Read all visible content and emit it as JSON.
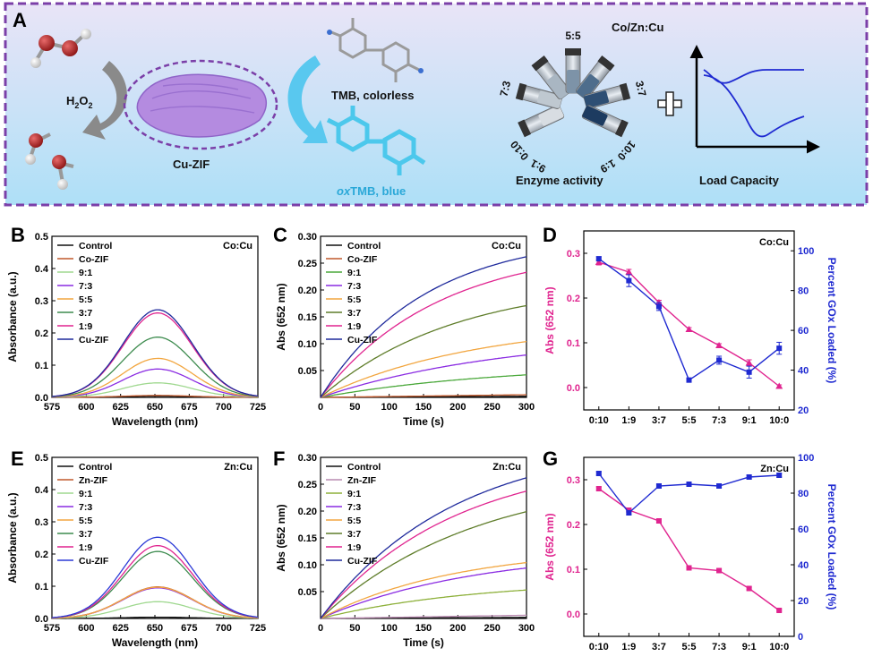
{
  "schematic": {
    "letter": "A",
    "h2o2": "H",
    "h2o2_sub": "2",
    "h2o2_o": "O",
    "h2o2_sub2": "2",
    "cuzif": "Cu-ZIF",
    "tmb": "TMB, colorless",
    "oxtmb_ox": "ox",
    "oxtmb_rest": "TMB, blue",
    "co_zn_cu": "Co/Zn:Cu",
    "vials": [
      "10:0",
      "9:1",
      "7:3",
      "5:5",
      "3:7",
      "1:9",
      "0:10"
    ],
    "enzyme": "Enzyme activity",
    "load": "Load Capacity",
    "colors": {
      "border": "#7b3fa8",
      "bg_top": "#e9e4f7",
      "bg_bottom": "#aee0f7",
      "arrow": "#8a8a8a",
      "arrow_blue": "#59c8ef"
    }
  },
  "chart_data": [
    {
      "id": "B",
      "letter": "B",
      "type": "line",
      "title": "",
      "tag": "Co:Cu",
      "xlabel": "Wavelength (nm)",
      "ylabel": "Absorbance (a.u.)",
      "xlim": [
        575,
        725
      ],
      "ylim": [
        0,
        0.5
      ],
      "xticks": [
        575,
        600,
        625,
        650,
        675,
        700,
        725
      ],
      "yticks": [
        0.0,
        0.1,
        0.2,
        0.3,
        0.4,
        0.5
      ],
      "ytick_labels": [
        "0.0",
        "0.1",
        "0.2",
        "0.3",
        "0.4",
        "0.5"
      ],
      "peak_x": 652,
      "series": [
        {
          "name": "Control",
          "peak": 0.004,
          "color": "#111111"
        },
        {
          "name": "Co-ZIF",
          "peak": 0.006,
          "color": "#c0582b"
        },
        {
          "name": "9:1",
          "peak": 0.045,
          "color": "#9fd88f"
        },
        {
          "name": "7:3",
          "peak": 0.088,
          "color": "#8a2be2"
        },
        {
          "name": "5:5",
          "peak": 0.121,
          "color": "#f2a640"
        },
        {
          "name": "3:7",
          "peak": 0.187,
          "color": "#3d8b4e"
        },
        {
          "name": "1:9",
          "peak": 0.262,
          "color": "#e0248f"
        },
        {
          "name": "Cu-ZIF",
          "peak": 0.272,
          "color": "#1f2a9c"
        }
      ]
    },
    {
      "id": "C",
      "letter": "C",
      "type": "line",
      "title": "",
      "tag": "Co:Cu",
      "xlabel": "Time (s)",
      "ylabel": "Abs (652 nm)",
      "xlim": [
        0,
        300
      ],
      "ylim": [
        0,
        0.3
      ],
      "xticks": [
        0,
        50,
        100,
        150,
        200,
        250,
        300
      ],
      "yticks": [
        0.05,
        0.1,
        0.15,
        0.2,
        0.25,
        0.3
      ],
      "ytick_labels": [
        "0.05",
        "0.10",
        "0.15",
        "0.20",
        "0.25",
        "0.30"
      ],
      "series": [
        {
          "name": "Control",
          "end": 0.002,
          "k": 0.0,
          "color": "#111111"
        },
        {
          "name": "Co-ZIF",
          "end": 0.005,
          "k": 0.0,
          "color": "#c0582b"
        },
        {
          "name": "9:1",
          "end": 0.042,
          "k": 0.5,
          "color": "#4aa83a"
        },
        {
          "name": "7:3",
          "end": 0.079,
          "k": 0.5,
          "color": "#8a2be2"
        },
        {
          "name": "5:5",
          "end": 0.104,
          "k": 0.6,
          "color": "#f2a640"
        },
        {
          "name": "3:7",
          "end": 0.171,
          "k": 0.7,
          "color": "#5f7d2a"
        },
        {
          "name": "1:9",
          "end": 0.233,
          "k": 0.8,
          "color": "#e0248f"
        },
        {
          "name": "Cu-ZIF",
          "end": 0.262,
          "k": 0.9,
          "color": "#1f2a9c"
        }
      ]
    },
    {
      "id": "D",
      "letter": "D",
      "type": "line",
      "title": "",
      "tag": "Co:Cu",
      "categories": [
        "0:10",
        "1:9",
        "3:7",
        "5:5",
        "7:3",
        "9:1",
        "10:0"
      ],
      "ylabel": "Abs (652 nm)",
      "y2label": "Percent GOx Loaded (%)",
      "ylim": [
        -0.05,
        0.35
      ],
      "yticks": [
        0.0,
        0.1,
        0.2,
        0.3
      ],
      "ytick_labels": [
        "0.0",
        "0.1",
        "0.2",
        "0.3"
      ],
      "y2lim": [
        20,
        110
      ],
      "y2ticks": [
        20,
        40,
        60,
        80,
        100
      ],
      "series": [
        {
          "name": "Abs (652 nm)",
          "axis": "left",
          "color": "#e0248f",
          "marker": "triangle",
          "values": [
            0.28,
            0.258,
            0.19,
            0.13,
            0.094,
            0.055,
            0.003
          ],
          "err": [
            0.006,
            0.006,
            0.005,
            0.004,
            0.004,
            0.007,
            0.003
          ]
        },
        {
          "name": "Percent GOx Loaded (%)",
          "axis": "right",
          "color": "#1f2ad1",
          "marker": "square",
          "values": [
            96,
            85,
            72,
            35,
            45,
            39,
            51
          ],
          "err": [
            1,
            3,
            2,
            1,
            2,
            3,
            3
          ]
        }
      ]
    },
    {
      "id": "E",
      "letter": "E",
      "type": "line",
      "title": "",
      "tag": "Zn:Cu",
      "xlabel": "Wavelength (nm)",
      "ylabel": "Absorbance (a.u.)",
      "xlim": [
        575,
        725
      ],
      "ylim": [
        0,
        0.5
      ],
      "xticks": [
        575,
        600,
        625,
        650,
        675,
        700,
        725
      ],
      "yticks": [
        0.0,
        0.1,
        0.2,
        0.3,
        0.4,
        0.5
      ],
      "ytick_labels": [
        "0.0",
        "0.1",
        "0.2",
        "0.3",
        "0.4",
        "0.5"
      ],
      "peak_x": 652,
      "series": [
        {
          "name": "Control",
          "peak": 0.004,
          "color": "#111111"
        },
        {
          "name": "Zn-ZIF",
          "peak": 0.098,
          "color": "#c0582b"
        },
        {
          "name": "9:1",
          "peak": 0.052,
          "color": "#9fd88f"
        },
        {
          "name": "7:3",
          "peak": 0.095,
          "color": "#8a2be2"
        },
        {
          "name": "5:5",
          "peak": 0.097,
          "color": "#f2a640"
        },
        {
          "name": "3:7",
          "peak": 0.208,
          "color": "#3d8b4e"
        },
        {
          "name": "1:9",
          "peak": 0.226,
          "color": "#e0248f"
        },
        {
          "name": "Cu-ZIF",
          "peak": 0.252,
          "color": "#2b3ad6"
        }
      ]
    },
    {
      "id": "F",
      "letter": "F",
      "type": "line",
      "title": "",
      "tag": "Zn:Cu",
      "xlabel": "Time (s)",
      "ylabel": "Abs (652 nm)",
      "xlim": [
        0,
        300
      ],
      "ylim": [
        0,
        0.3
      ],
      "xticks": [
        0,
        50,
        100,
        150,
        200,
        250,
        300
      ],
      "yticks": [
        0.05,
        0.1,
        0.15,
        0.2,
        0.25,
        0.3
      ],
      "ytick_labels": [
        "0.05",
        "0.10",
        "0.15",
        "0.20",
        "0.25",
        "0.30"
      ],
      "series": [
        {
          "name": "Control",
          "end": 0.002,
          "k": 0.0,
          "color": "#111111"
        },
        {
          "name": "Zn-ZIF",
          "end": 0.006,
          "k": 0.0,
          "color": "#b98ab0"
        },
        {
          "name": "9:1",
          "end": 0.053,
          "k": 0.6,
          "color": "#8db03a"
        },
        {
          "name": "7:3",
          "end": 0.094,
          "k": 0.6,
          "color": "#8a2be2"
        },
        {
          "name": "5:5",
          "end": 0.104,
          "k": 0.7,
          "color": "#f2a640"
        },
        {
          "name": "3:7",
          "end": 0.199,
          "k": 0.6,
          "color": "#5f7d2a"
        },
        {
          "name": "1:9",
          "end": 0.237,
          "k": 0.7,
          "color": "#e0248f"
        },
        {
          "name": "Cu-ZIF",
          "end": 0.262,
          "k": 0.7,
          "color": "#1f2a9c"
        }
      ]
    },
    {
      "id": "G",
      "letter": "G",
      "type": "line",
      "title": "",
      "tag": "Zn:Cu",
      "categories": [
        "0:10",
        "1:9",
        "3:7",
        "5:5",
        "7:3",
        "9:1",
        "10:0"
      ],
      "ylabel": "Abs (652 nm)",
      "y2label": "Percent GOx Loaded (%)",
      "ylim": [
        -0.05,
        0.35
      ],
      "yticks": [
        0.0,
        0.1,
        0.2,
        0.3
      ],
      "ytick_labels": [
        "0.0",
        "0.1",
        "0.2",
        "0.3"
      ],
      "y2lim": [
        0,
        100
      ],
      "y2ticks": [
        0,
        20,
        40,
        60,
        80,
        100
      ],
      "series": [
        {
          "name": "Abs (652 nm)",
          "axis": "left",
          "color": "#e0248f",
          "marker": "square",
          "values": [
            0.28,
            0.232,
            0.208,
            0.103,
            0.097,
            0.057,
            0.008
          ],
          "err": [
            0.004,
            0.004,
            0.004,
            0.003,
            0.003,
            0.003,
            0.002
          ]
        },
        {
          "name": "Percent GOx Loaded (%)",
          "axis": "right",
          "color": "#1f2ad1",
          "marker": "square",
          "values": [
            91,
            69,
            84,
            85,
            84,
            89,
            90
          ],
          "err": [
            1,
            1,
            1,
            1,
            1,
            1,
            1
          ]
        }
      ]
    }
  ]
}
